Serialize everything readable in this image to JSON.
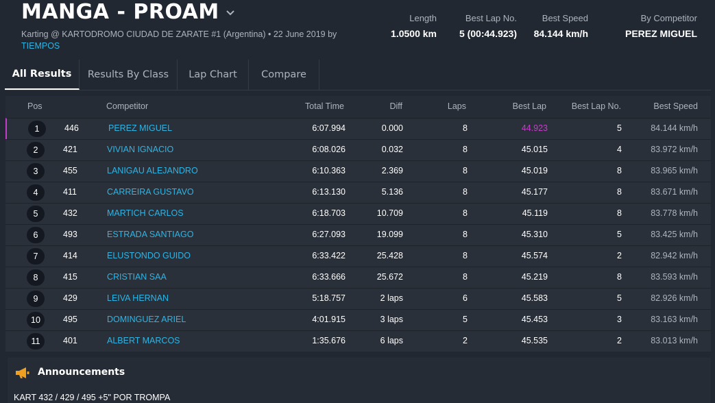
{
  "header": {
    "title": "MANGA - PROAM",
    "subtitle": "Karting @ KARTODROMO CIUDAD DE ZARATE #1 (Argentina) • 22 June 2019 by",
    "subtitle_link": "TIEMPOS"
  },
  "stats": {
    "length_label": "Length",
    "length_value": "1.0500 km",
    "bestlap_label": "Best Lap No.",
    "bestlap_value": "5 (00:44.923)",
    "bestspeed_label": "Best Speed",
    "bestspeed_value": "84.144 km/h",
    "competitor_label": "By Competitor",
    "competitor_value": "PEREZ MIGUEL"
  },
  "tabs": [
    "All Results",
    "Results By Class",
    "Lap Chart",
    "Compare"
  ],
  "table": {
    "columns": {
      "pos": "Pos",
      "competitor": "Competitor",
      "total": "Total Time",
      "diff": "Diff",
      "laps": "Laps",
      "best_lap": "Best Lap",
      "best_lap_no": "Best Lap No.",
      "best_speed": "Best Speed"
    },
    "rows": [
      {
        "pos": "1",
        "num": "446",
        "name": "PEREZ MIGUEL",
        "total": "6:07.994",
        "diff": "0.000",
        "laps": "8",
        "best": "44.923",
        "bestno": "5",
        "speed": "84.144 km/h"
      },
      {
        "pos": "2",
        "num": "421",
        "name": "VIVIAN IGNACIO",
        "total": "6:08.026",
        "diff": "0.032",
        "laps": "8",
        "best": "45.015",
        "bestno": "4",
        "speed": "83.972 km/h"
      },
      {
        "pos": "3",
        "num": "455",
        "name": "LANIGAU ALEJANDRO",
        "total": "6:10.363",
        "diff": "2.369",
        "laps": "8",
        "best": "45.019",
        "bestno": "8",
        "speed": "83.965 km/h"
      },
      {
        "pos": "4",
        "num": "411",
        "name": "CARREIRA GUSTAVO",
        "total": "6:13.130",
        "diff": "5.136",
        "laps": "8",
        "best": "45.177",
        "bestno": "8",
        "speed": "83.671 km/h"
      },
      {
        "pos": "5",
        "num": "432",
        "name": "MARTICH CARLOS",
        "total": "6:18.703",
        "diff": "10.709",
        "laps": "8",
        "best": "45.119",
        "bestno": "8",
        "speed": "83.778 km/h"
      },
      {
        "pos": "6",
        "num": "493",
        "name": "ESTRADA SANTIAGO",
        "total": "6:27.093",
        "diff": "19.099",
        "laps": "8",
        "best": "45.310",
        "bestno": "5",
        "speed": "83.425 km/h"
      },
      {
        "pos": "7",
        "num": "414",
        "name": "ELUSTONDO GUIDO",
        "total": "6:33.422",
        "diff": "25.428",
        "laps": "8",
        "best": "45.574",
        "bestno": "2",
        "speed": "82.942 km/h"
      },
      {
        "pos": "8",
        "num": "415",
        "name": "CRISTIAN SAA",
        "total": "6:33.666",
        "diff": "25.672",
        "laps": "8",
        "best": "45.219",
        "bestno": "8",
        "speed": "83.593 km/h"
      },
      {
        "pos": "9",
        "num": "429",
        "name": "LEIVA HERNAN",
        "total": "5:18.757",
        "diff": "2 laps",
        "laps": "6",
        "best": "45.583",
        "bestno": "5",
        "speed": "82.926 km/h"
      },
      {
        "pos": "10",
        "num": "495",
        "name": "DOMINGUEZ ARIEL",
        "total": "4:01.915",
        "diff": "3 laps",
        "laps": "5",
        "best": "45.453",
        "bestno": "3",
        "speed": "83.163 km/h"
      },
      {
        "pos": "11",
        "num": "401",
        "name": "ALBERT MARCOS",
        "total": "1:35.676",
        "diff": "6 laps",
        "laps": "2",
        "best": "45.535",
        "bestno": "2",
        "speed": "83.013 km/h"
      }
    ]
  },
  "announcements": {
    "title": "Announcements",
    "icon": "megaphone-icon",
    "text": "KART 432 / 429 / 495 +5\" POR TROMPA"
  },
  "colors": {
    "background": "#222831",
    "link": "#2db5e6",
    "best_lap_highlight": "#c53ec9",
    "announce_icon": "#f0a020"
  }
}
